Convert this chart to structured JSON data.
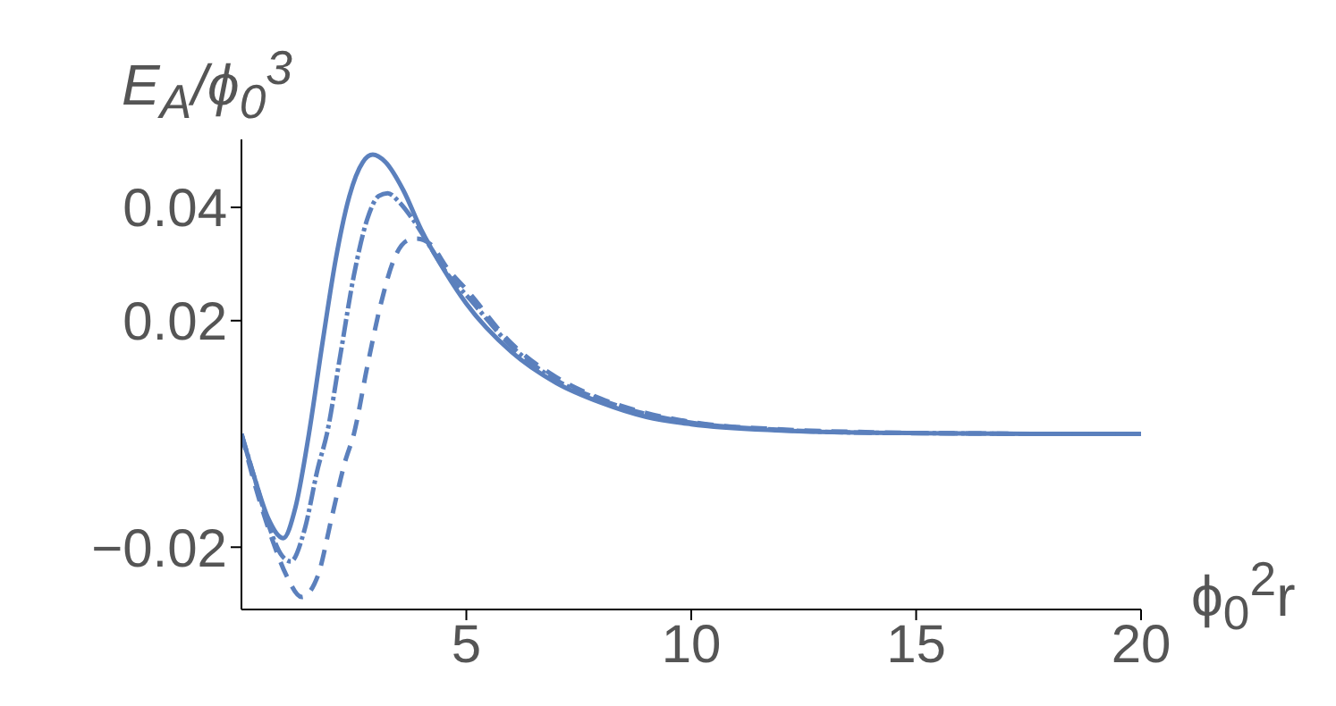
{
  "chart_data": {
    "type": "line",
    "xlabel": "ϕ$_{0}$$^{2}$r",
    "ylabel": "E$_{A}$/ϕ$_{0}$$^{3}$",
    "xlim": [
      0,
      20
    ],
    "xticks": [
      5,
      10,
      15,
      20
    ],
    "ylim": [
      -0.031,
      0.052
    ],
    "yticks": [
      {
        "value": -0.02,
        "label": "−0.02"
      },
      0.02,
      0.04
    ],
    "grid": false,
    "legend": false,
    "marker": "none",
    "series": [
      {
        "color": "#5b80bd",
        "line_style": "solid",
        "x": [
          0,
          0.3,
          0.6,
          0.93,
          1.2,
          1.5,
          1.8,
          2.1,
          2.4,
          2.7,
          2.92,
          3.2,
          3.6,
          4,
          4.5,
          5,
          6,
          7,
          8,
          9,
          10,
          12,
          14,
          16,
          18,
          20
        ],
        "values": [
          0,
          -0.008,
          -0.015,
          -0.0184,
          -0.013,
          0,
          0.016,
          0.031,
          0.042,
          0.048,
          0.0493,
          0.048,
          0.043,
          0.036,
          0.029,
          0.023,
          0.0145,
          0.009,
          0.0055,
          0.003,
          0.0017,
          0.0006,
          0.0002,
          0.0001,
          0,
          0
        ]
      },
      {
        "color": "#5b80bd",
        "line_style": "dotted",
        "x": [
          0,
          0.3,
          0.6,
          0.9,
          1.1,
          1.4,
          1.7,
          1.9,
          2.2,
          2.5,
          2.8,
          3.05,
          3.25,
          3.5,
          3.8,
          4.2,
          4.6,
          5,
          6,
          7,
          8,
          9,
          10,
          12,
          14,
          16,
          18,
          20
        ],
        "values": [
          0,
          -0.008,
          -0.016,
          -0.0215,
          -0.0225,
          -0.017,
          -0.006,
          0,
          0.014,
          0.028,
          0.038,
          0.042,
          0.0425,
          0.041,
          0.038,
          0.033,
          0.028,
          0.0245,
          0.0155,
          0.0095,
          0.006,
          0.0035,
          0.002,
          0.0007,
          0.0002,
          0.0001,
          0,
          0
        ]
      },
      {
        "color": "#5b80bd",
        "line_style": "dashed",
        "x": [
          0,
          0.3,
          0.7,
          1.0,
          1.34,
          1.7,
          2.0,
          2.3,
          2.5,
          2.8,
          3.1,
          3.4,
          3.7,
          3.9,
          4.2,
          4.6,
          5,
          6,
          7,
          8,
          9,
          10,
          12,
          14,
          16,
          18,
          20
        ],
        "values": [
          0,
          -0.009,
          -0.019,
          -0.025,
          -0.0288,
          -0.025,
          -0.015,
          -0.005,
          0,
          0.012,
          0.023,
          0.031,
          0.0342,
          0.0345,
          0.0335,
          0.029,
          0.0255,
          0.016,
          0.01,
          0.0062,
          0.0037,
          0.0021,
          0.0008,
          0.0003,
          0.0001,
          0,
          0
        ]
      }
    ]
  }
}
